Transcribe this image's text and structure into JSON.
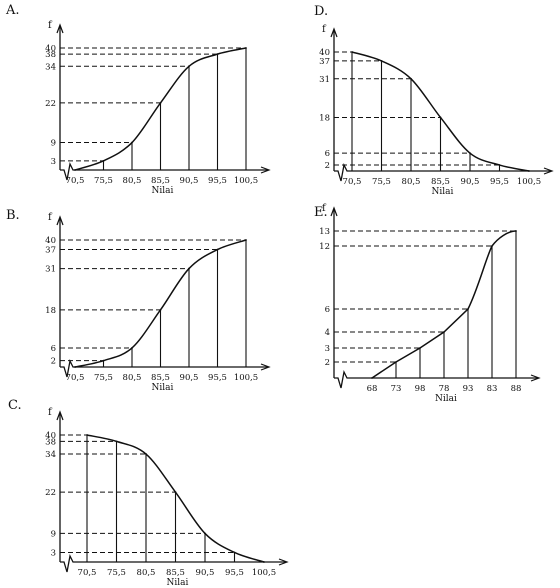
{
  "chart_data": [
    {
      "id": "A",
      "option_label": "A.",
      "type": "line",
      "variant": "ogive-less-than",
      "axis_label_y": "f",
      "xlabel": "Nilai",
      "x_ticks": [
        "70,5",
        "75,5",
        "80,5",
        "85,5",
        "90,5",
        "95,5",
        "100,5"
      ],
      "y_ticks": [
        3,
        9,
        22,
        34,
        38,
        40
      ],
      "points": [
        {
          "x": "70,5",
          "y": 0
        },
        {
          "x": "75,5",
          "y": 3
        },
        {
          "x": "80,5",
          "y": 9
        },
        {
          "x": "85,5",
          "y": 22
        },
        {
          "x": "90,5",
          "y": 34
        },
        {
          "x": "95,5",
          "y": 38
        },
        {
          "x": "100,5",
          "y": 40
        }
      ]
    },
    {
      "id": "B",
      "option_label": "B.",
      "type": "line",
      "variant": "ogive-less-than",
      "axis_label_y": "f",
      "xlabel": "Nilai",
      "x_ticks": [
        "70,5",
        "75,5",
        "80,5",
        "85,5",
        "90,5",
        "95,5",
        "100,5"
      ],
      "y_ticks": [
        2,
        6,
        18,
        31,
        37,
        40
      ],
      "points": [
        {
          "x": "70,5",
          "y": 0
        },
        {
          "x": "75,5",
          "y": 2
        },
        {
          "x": "80,5",
          "y": 6
        },
        {
          "x": "85,5",
          "y": 18
        },
        {
          "x": "90,5",
          "y": 31
        },
        {
          "x": "95,5",
          "y": 37
        },
        {
          "x": "100,5",
          "y": 40
        }
      ]
    },
    {
      "id": "C",
      "option_label": "C.",
      "type": "line",
      "variant": "ogive-more-than",
      "axis_label_y": "f",
      "xlabel": "Nilai",
      "x_ticks": [
        "70,5",
        "75,5",
        "80,5",
        "85,5",
        "90,5",
        "95,5",
        "100,5"
      ],
      "y_ticks": [
        3,
        9,
        22,
        34,
        38,
        40
      ],
      "points": [
        {
          "x": "70,5",
          "y": 40
        },
        {
          "x": "75,5",
          "y": 38
        },
        {
          "x": "80,5",
          "y": 34
        },
        {
          "x": "85,5",
          "y": 22
        },
        {
          "x": "90,5",
          "y": 9
        },
        {
          "x": "95,5",
          "y": 3
        },
        {
          "x": "100,5",
          "y": 0
        }
      ]
    },
    {
      "id": "D",
      "option_label": "D.",
      "type": "line",
      "variant": "ogive-more-than",
      "axis_label_y": "f",
      "xlabel": "Nilai",
      "x_ticks": [
        "70,5",
        "75,5",
        "80,5",
        "85,5",
        "90,5",
        "95,5",
        "100,5"
      ],
      "y_ticks": [
        2,
        6,
        18,
        31,
        37,
        40
      ],
      "points": [
        {
          "x": "70,5",
          "y": 40
        },
        {
          "x": "75,5",
          "y": 37
        },
        {
          "x": "80,5",
          "y": 31
        },
        {
          "x": "85,5",
          "y": 18
        },
        {
          "x": "90,5",
          "y": 6
        },
        {
          "x": "95,5",
          "y": 2
        },
        {
          "x": "100,5",
          "y": 0
        }
      ]
    },
    {
      "id": "E",
      "option_label": "E.",
      "type": "line",
      "variant": "ogive-less-than",
      "axis_label_y": "f",
      "xlabel": "Nilai",
      "x_ticks": [
        "68",
        "73",
        "98",
        "78",
        "93",
        "83",
        "88"
      ],
      "y_ticks": [
        2,
        3,
        4,
        6,
        12,
        13
      ],
      "points": [
        {
          "x": "68",
          "y": 0
        },
        {
          "x": "73",
          "y": 2
        },
        {
          "x": "98",
          "y": 3
        },
        {
          "x": "78",
          "y": 4
        },
        {
          "x": "93",
          "y": 6
        },
        {
          "x": "83",
          "y": 12
        },
        {
          "x": "88",
          "y": 13
        }
      ]
    }
  ]
}
